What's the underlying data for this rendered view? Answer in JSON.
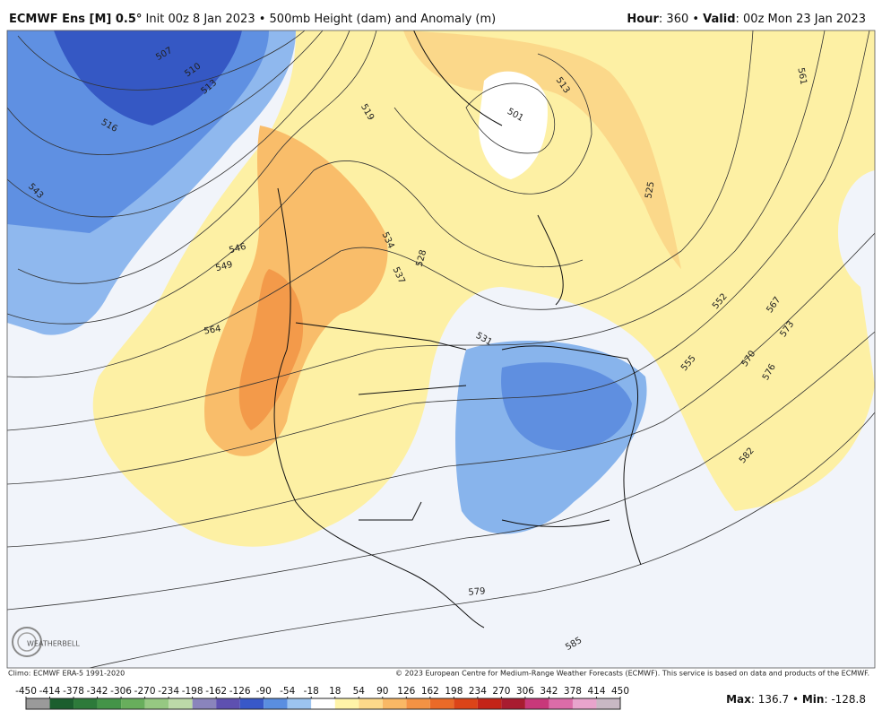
{
  "header": {
    "title_bold": "ECMWF Ens [M] 0.5°",
    "title_rest": "Init 00z 8 Jan 2023 • 500mb Height (dam) and Anomaly (m)",
    "hour_label": "Hour",
    "hour_value": ": 360 • ",
    "valid_label": "Valid",
    "valid_value": ": 00z Mon 23 Jan 2023"
  },
  "map": {
    "contour_labels": [
      507,
      510,
      513,
      516,
      543,
      546,
      549,
      564,
      519,
      534,
      537,
      528,
      531,
      501,
      513,
      525,
      561,
      552,
      567,
      573,
      570,
      576,
      555,
      582,
      579,
      585
    ],
    "logo": "WEATHERBELL"
  },
  "footer": {
    "climo": "Climo: ECMWF ERA-5 1991-2020",
    "copyright": "© 2023 European Centre for Medium-Range Weather Forecasts (ECMWF). This service is based on data and products of the ECMWF."
  },
  "colorbar": {
    "ticks": [
      -450,
      -414,
      -378,
      -342,
      -306,
      -270,
      -234,
      -198,
      -162,
      -126,
      -90,
      -54,
      -18,
      18,
      54,
      90,
      126,
      162,
      198,
      234,
      270,
      306,
      342,
      378,
      414,
      450
    ],
    "colors": [
      "#9a9a9a",
      "#1b5e2e",
      "#2d7a3a",
      "#449448",
      "#68ae5c",
      "#96c882",
      "#bcd9a8",
      "#8a84bc",
      "#5e50b0",
      "#3858c8",
      "#5a8ee0",
      "#9cc4f0",
      "#ffffff",
      "#fff4a8",
      "#fdd98a",
      "#f9b865",
      "#f39244",
      "#ea6a28",
      "#dc4418",
      "#c42418",
      "#a81c30",
      "#c8387a",
      "#dc6ca8",
      "#e8a4cc",
      "#c8b8c4"
    ]
  },
  "stats": {
    "max_label": "Max",
    "max_value": 136.7,
    "separator": "•",
    "min_label": "Min",
    "min_value": -128.8
  }
}
